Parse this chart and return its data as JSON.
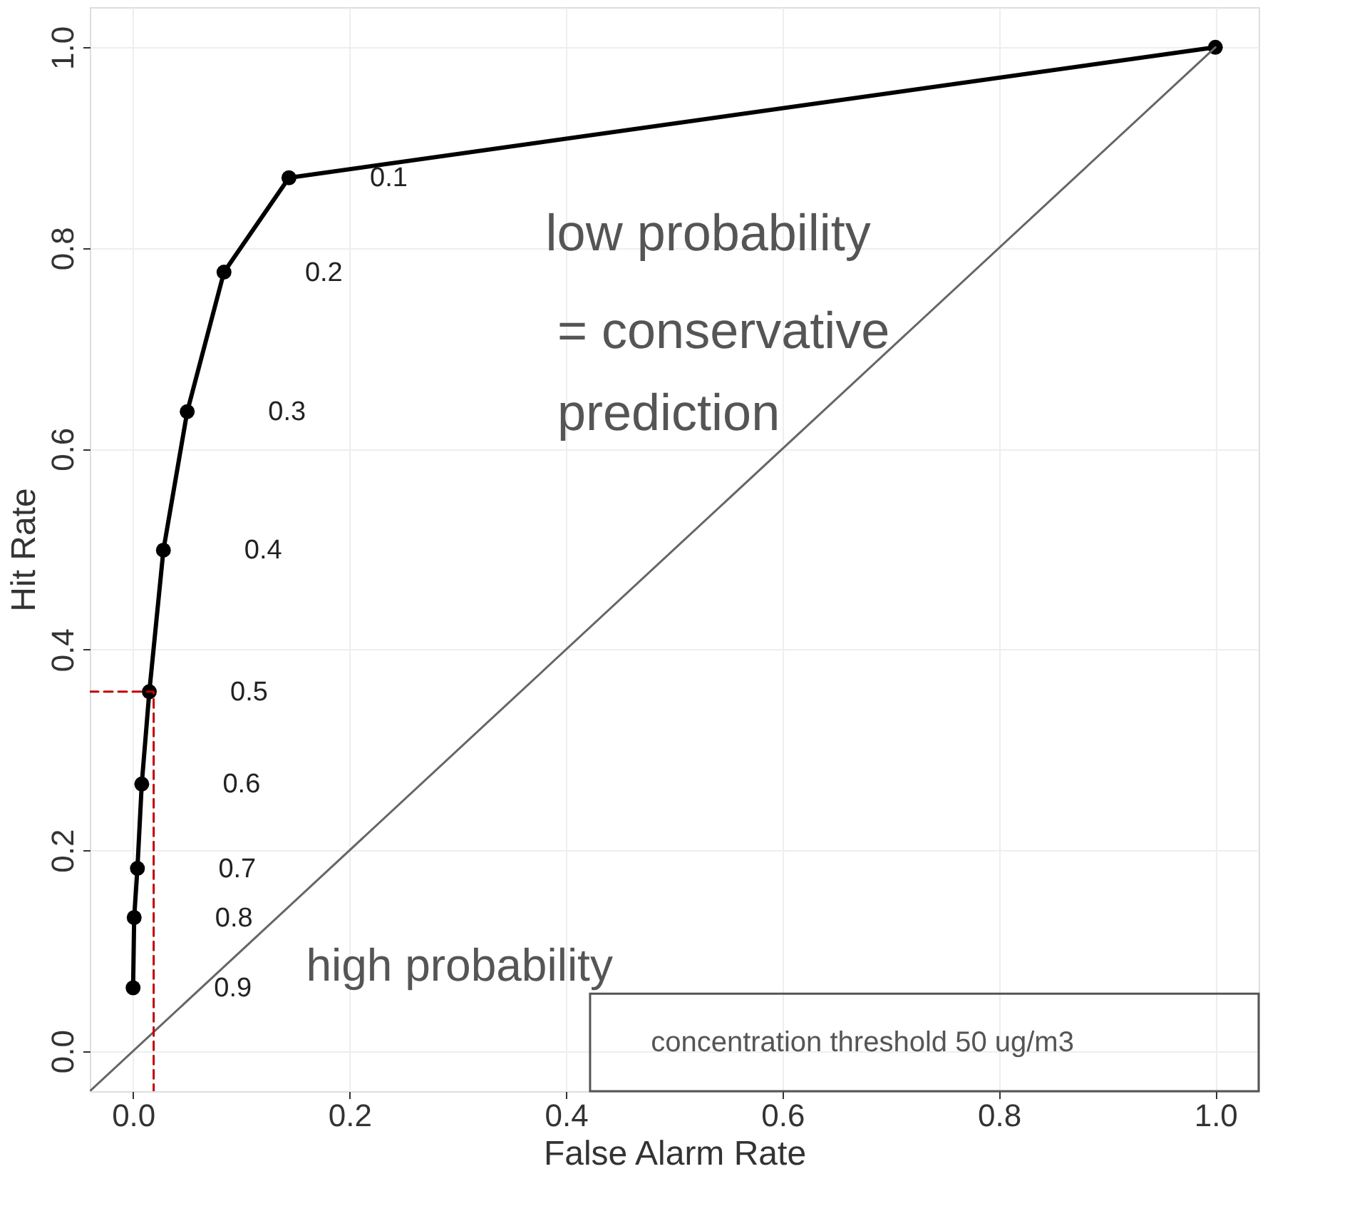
{
  "chart_data": {
    "type": "line",
    "xlabel": "False Alarm Rate",
    "ylabel": "Hit Rate",
    "xlim": [
      -0.04,
      1.04
    ],
    "ylim": [
      -0.04,
      1.04
    ],
    "xticks": [
      {
        "value": 0,
        "label": "0.0"
      },
      0.2,
      0.4,
      0.6,
      0.8,
      {
        "value": 1,
        "label": "1.0"
      }
    ],
    "yticks": [
      {
        "value": 0,
        "label": "0.0"
      },
      0.2,
      0.4,
      0.6,
      0.8,
      {
        "value": 1,
        "label": "1.0"
      }
    ],
    "grid": true,
    "series": [
      {
        "color": "#000000",
        "marker": "circle",
        "line_style": "solid",
        "x": [
          0.0,
          0.001,
          0.004,
          0.008,
          0.015,
          0.028,
          0.05,
          0.084,
          0.144,
          1.0
        ],
        "values": [
          0.063,
          0.133,
          0.182,
          0.266,
          0.358,
          0.499,
          0.637,
          0.776,
          0.87,
          1.0
        ]
      },
      {
        "color": "#666666",
        "marker": "none",
        "line_style": "solid",
        "x": [
          -0.04,
          1.0
        ],
        "values": [
          -0.04,
          1.0
        ]
      },
      {
        "color": "#c00000",
        "marker": "none",
        "line_style": "dashed",
        "x": [
          -0.04,
          0.019,
          0.019
        ],
        "values": [
          0.358,
          0.358,
          -0.04
        ]
      }
    ],
    "annotations": [
      {
        "text": "0.1",
        "x": 0.144,
        "y": 0.87
      },
      {
        "text": "0.2",
        "x": 0.084,
        "y": 0.776
      },
      {
        "text": "0.3",
        "x": 0.05,
        "y": 0.637
      },
      {
        "text": "0.4",
        "x": 0.028,
        "y": 0.499
      },
      {
        "text": "0.5",
        "x": 0.015,
        "y": 0.358
      },
      {
        "text": "0.6",
        "x": 0.008,
        "y": 0.266
      },
      {
        "text": "0.7",
        "x": 0.004,
        "y": 0.182
      },
      {
        "text": "0.8",
        "x": 0.001,
        "y": 0.133
      },
      {
        "text": "0.9",
        "x": 0.0,
        "y": 0.063
      },
      "low probability",
      "= conservative\nprediction",
      "high probability",
      "concentration threshold 50 ug/m3"
    ]
  }
}
